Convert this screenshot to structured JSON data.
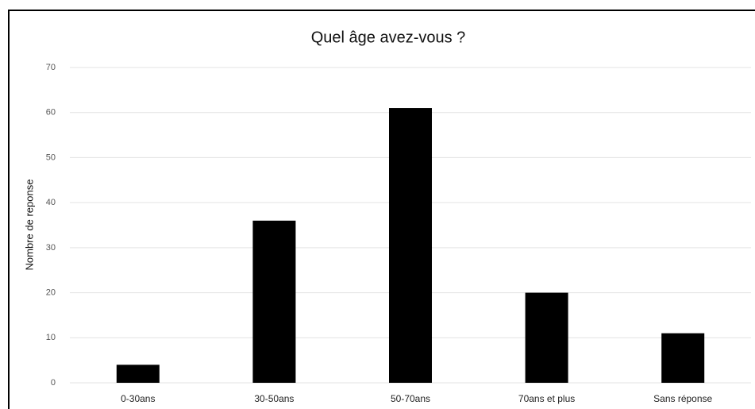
{
  "chart_data": {
    "type": "bar",
    "title": "Quel âge avez-vous ?",
    "y_label": "Nombre de reponse",
    "categories": [
      "0-30ans",
      "30-50ans",
      "50-70ans",
      "70ans et plus",
      "Sans réponse"
    ],
    "values": [
      4,
      36,
      61,
      20,
      11
    ],
    "color": "#000000",
    "ylim": [
      0,
      70
    ],
    "yticks": [
      0,
      10,
      20,
      30,
      40,
      50,
      60,
      70
    ],
    "grid": true
  }
}
